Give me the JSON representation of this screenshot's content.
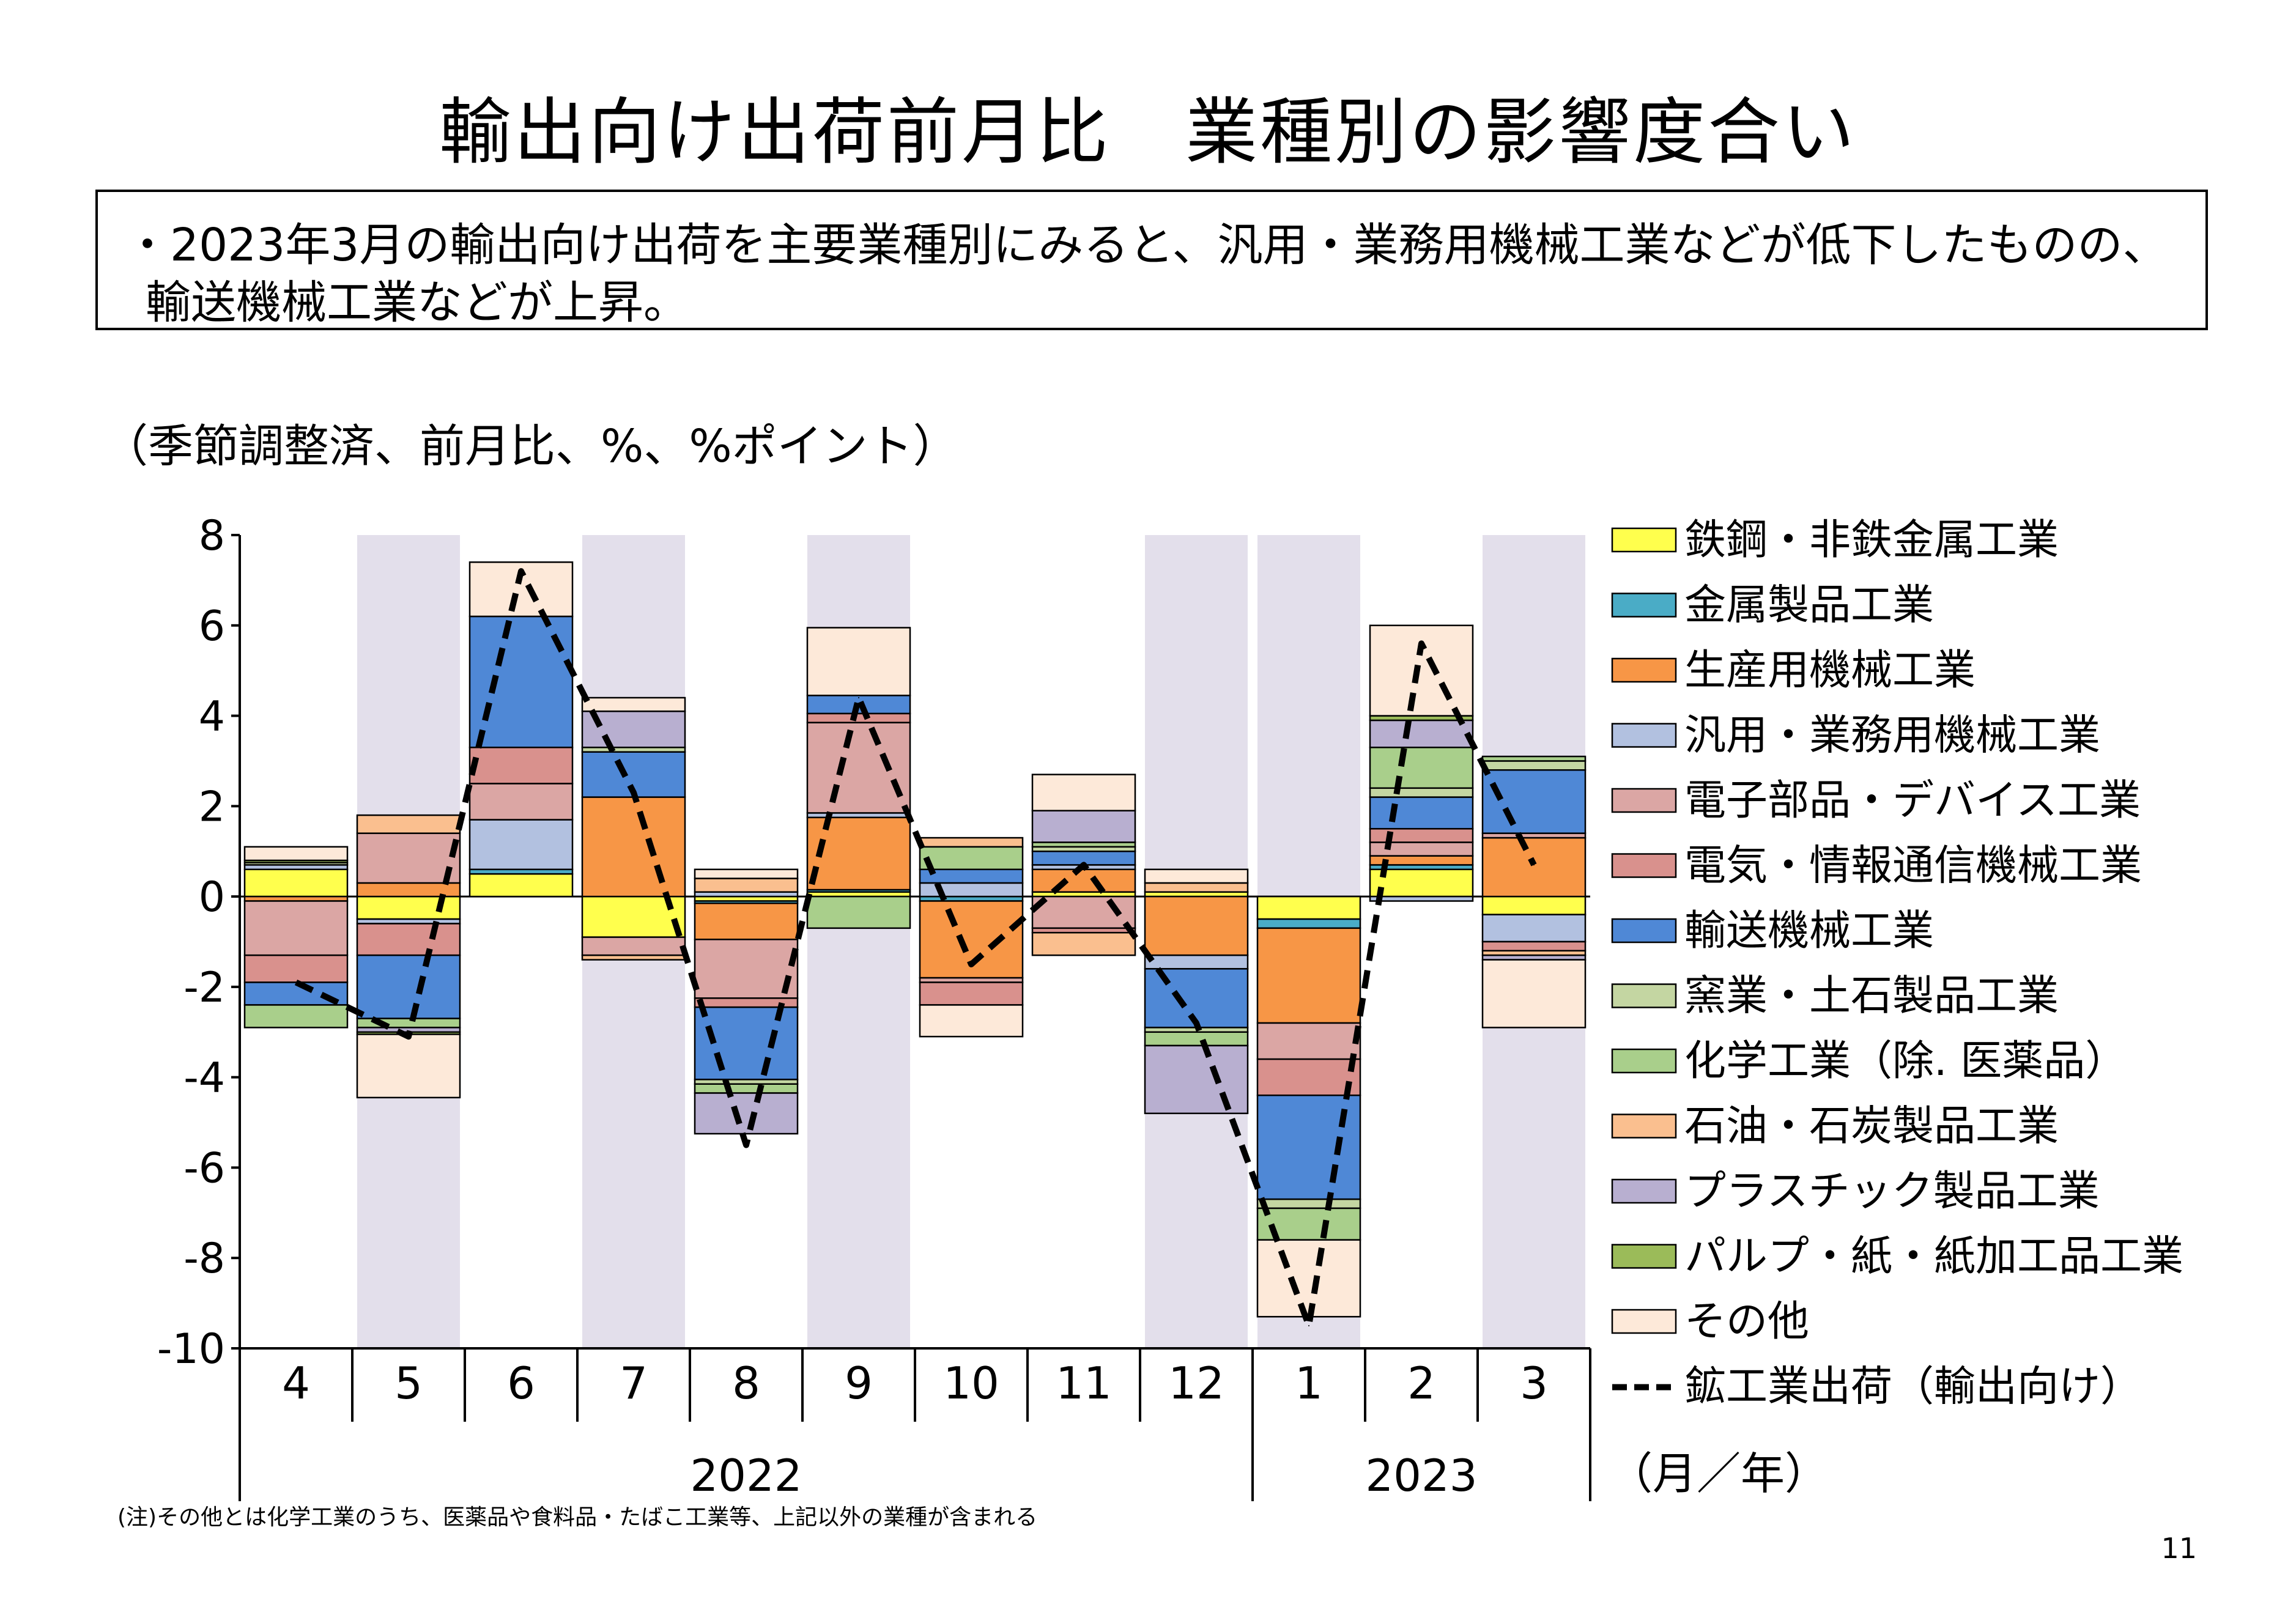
{
  "title": "輸出向け出荷前月比　業種別の影響度合い",
  "summary": {
    "line1": "・2023年3月の輸出向け出荷を主要業種別にみると、汎用・業務用機械工業などが低下したものの、",
    "line2": "輸送機械工業などが上昇。"
  },
  "unit_label": "（季節調整済、前月比、%、%ポイント）",
  "note": "(注)その他とは化学工業のうち、医薬品や食料品・たばこ工業等、上記以外の業種が含まれる",
  "page_number": "11",
  "chart_data": {
    "type": "bar",
    "stacked": true,
    "categories": [
      "4",
      "5",
      "6",
      "7",
      "8",
      "9",
      "10",
      "11",
      "12",
      "1",
      "2",
      "3"
    ],
    "year_labels": [
      {
        "label": "2022",
        "categories": [
          "4",
          "5",
          "6",
          "7",
          "8",
          "9",
          "10",
          "11",
          "12"
        ]
      },
      {
        "label": "2023",
        "categories": [
          "1",
          "2",
          "3"
        ]
      }
    ],
    "xunit": "（月／年）",
    "ylim": [
      -10,
      8
    ],
    "yticks": [
      "8",
      "6",
      "4",
      "2",
      "0",
      "-2",
      "-4",
      "-6",
      "-8",
      "-10"
    ],
    "shaded_categories": [
      "5",
      "7",
      "9",
      "12",
      "1",
      "3"
    ],
    "shade_color": "#e3dfeb",
    "series": [
      {
        "name": "鉄鋼・非鉄金属工業",
        "color": "#ffff4d",
        "values": [
          0.6,
          -0.5,
          0.5,
          -0.9,
          -0.1,
          0.1,
          0.0,
          0.1,
          0.1,
          -0.5,
          0.6,
          -0.4
        ]
      },
      {
        "name": "金属製品工業",
        "color": "#4aacc6",
        "values": [
          0.0,
          0.0,
          0.1,
          0.0,
          -0.05,
          0.05,
          -0.1,
          0.0,
          0.0,
          -0.2,
          0.1,
          0.0
        ]
      },
      {
        "name": "生産用機械工業",
        "color": "#f79646",
        "values": [
          -0.1,
          0.3,
          0.0,
          2.2,
          -0.8,
          1.6,
          -1.7,
          0.5,
          -1.3,
          -2.1,
          0.2,
          1.3
        ]
      },
      {
        "name": "汎用・業務用機械工業",
        "color": "#b2c1e0",
        "values": [
          0.1,
          -0.1,
          1.1,
          0.0,
          0.1,
          0.1,
          0.3,
          0.1,
          -0.3,
          0.0,
          -0.1,
          -0.6
        ]
      },
      {
        "name": "電子部品・デバイス工業",
        "color": "#dba6a4",
        "values": [
          -1.2,
          1.1,
          0.8,
          -0.4,
          -1.3,
          2.0,
          -0.1,
          -0.7,
          0.0,
          -0.8,
          0.3,
          0.1
        ]
      },
      {
        "name": "電気・情報通信機械工業",
        "color": "#d9918d",
        "values": [
          -0.6,
          -0.7,
          0.8,
          0.0,
          -0.2,
          0.2,
          -0.5,
          -0.1,
          0.0,
          -0.8,
          0.3,
          -0.2
        ]
      },
      {
        "name": "輸送機械工業",
        "color": "#4f88d6",
        "values": [
          -0.5,
          -1.4,
          2.9,
          1.0,
          -1.6,
          0.4,
          0.3,
          0.3,
          -1.3,
          -2.3,
          0.7,
          1.4
        ]
      },
      {
        "name": "窯業・土石製品工業",
        "color": "#c4d6a2",
        "values": [
          0.05,
          0.0,
          0.0,
          0.1,
          -0.1,
          0.0,
          0.0,
          0.1,
          -0.1,
          -0.2,
          0.2,
          0.2
        ]
      },
      {
        "name": "化学工業（除. 医薬品）",
        "color": "#a9cf8b",
        "values": [
          -0.5,
          -0.2,
          0.0,
          0.0,
          -0.2,
          -0.7,
          0.5,
          0.1,
          -0.3,
          -0.7,
          0.9,
          0.1
        ]
      },
      {
        "name": "石油・石炭製品工業",
        "color": "#fabf8f",
        "values": [
          0.0,
          0.4,
          0.0,
          -0.1,
          0.3,
          0.0,
          0.2,
          -0.5,
          0.2,
          0.0,
          0.0,
          -0.1
        ]
      },
      {
        "name": "プラスチック製品工業",
        "color": "#b8afd0",
        "values": [
          0.0,
          -0.1,
          0.0,
          0.8,
          -0.9,
          0.0,
          0.0,
          0.7,
          -1.5,
          0.0,
          0.6,
          -0.1
        ]
      },
      {
        "name": "パルプ・紙・紙加工品工業",
        "color": "#9bbb59",
        "values": [
          0.05,
          -0.05,
          0.0,
          0.0,
          0.0,
          0.0,
          0.0,
          0.0,
          0.0,
          0.0,
          0.1,
          0.0
        ]
      },
      {
        "name": "その他",
        "color": "#fde9d9",
        "values": [
          0.3,
          -1.4,
          1.2,
          0.3,
          0.2,
          1.5,
          -0.7,
          0.8,
          0.3,
          -1.7,
          2.0,
          -1.5
        ]
      }
    ],
    "line_series": {
      "name": "鉱工業出荷（輸出向け）",
      "color": "#000000",
      "style": "dashed",
      "values": [
        -1.9,
        -3.1,
        7.2,
        2.3,
        -5.5,
        4.4,
        -1.5,
        0.7,
        -2.8,
        -9.5,
        5.6,
        0.7
      ]
    },
    "legend_placement": "right"
  }
}
